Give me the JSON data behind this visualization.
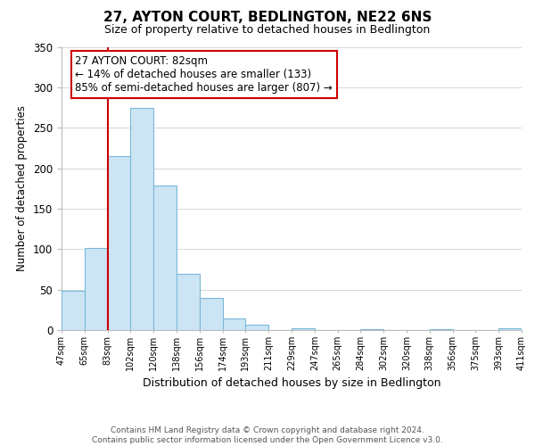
{
  "title": "27, AYTON COURT, BEDLINGTON, NE22 6NS",
  "subtitle": "Size of property relative to detached houses in Bedlington",
  "xlabel": "Distribution of detached houses by size in Bedlington",
  "ylabel": "Number of detached properties",
  "footer_line1": "Contains HM Land Registry data © Crown copyright and database right 2024.",
  "footer_line2": "Contains public sector information licensed under the Open Government Licence v3.0.",
  "bin_labels": [
    "47sqm",
    "65sqm",
    "83sqm",
    "102sqm",
    "120sqm",
    "138sqm",
    "156sqm",
    "174sqm",
    "193sqm",
    "211sqm",
    "229sqm",
    "247sqm",
    "265sqm",
    "284sqm",
    "302sqm",
    "320sqm",
    "338sqm",
    "356sqm",
    "375sqm",
    "393sqm",
    "411sqm"
  ],
  "bar_heights": [
    49,
    101,
    215,
    274,
    179,
    69,
    40,
    14,
    7,
    0,
    2,
    0,
    0,
    1,
    0,
    0,
    1,
    0,
    0,
    2
  ],
  "bar_color": "#cce5f5",
  "bar_edge_color": "#7ab8d8",
  "annotation_title": "27 AYTON COURT: 82sqm",
  "annotation_line1": "← 14% of detached houses are smaller (133)",
  "annotation_line2": "85% of semi-detached houses are larger (807) →",
  "annotation_box_color": "#ffffff",
  "annotation_box_edge_color": "#cc0000",
  "property_line_color": "#cc0000",
  "ylim": [
    0,
    350
  ],
  "yticks": [
    0,
    50,
    100,
    150,
    200,
    250,
    300,
    350
  ],
  "grid_color": "#d0d8e0",
  "background_color": "#ffffff",
  "fig_width": 6.0,
  "fig_height": 5.0,
  "dpi": 100
}
